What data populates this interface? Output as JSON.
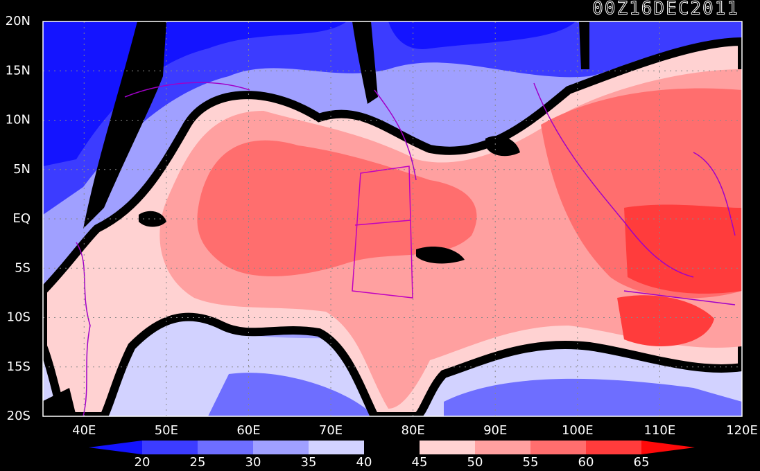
{
  "title": "00Z16DEC2011",
  "lat_labels": [
    "20N",
    "15N",
    "10N",
    "5N",
    "EQ",
    "5S",
    "10S",
    "15S",
    "20S"
  ],
  "lon_labels": [
    "40E",
    "50E",
    "60E",
    "70E",
    "80E",
    "90E",
    "100E",
    "110E",
    "120E"
  ],
  "colorbar": {
    "labels": [
      20,
      25,
      30,
      35,
      40,
      45,
      50,
      55,
      60,
      65
    ],
    "colors": [
      "#1414ff",
      "#3c3cff",
      "#6e6eff",
      "#a0a0ff",
      "#d2d2ff",
      "#000000",
      "#ffd2d2",
      "#ffa0a0",
      "#ff6e6e",
      "#ff3c3c",
      "#ff0a0a"
    ]
  }
}
